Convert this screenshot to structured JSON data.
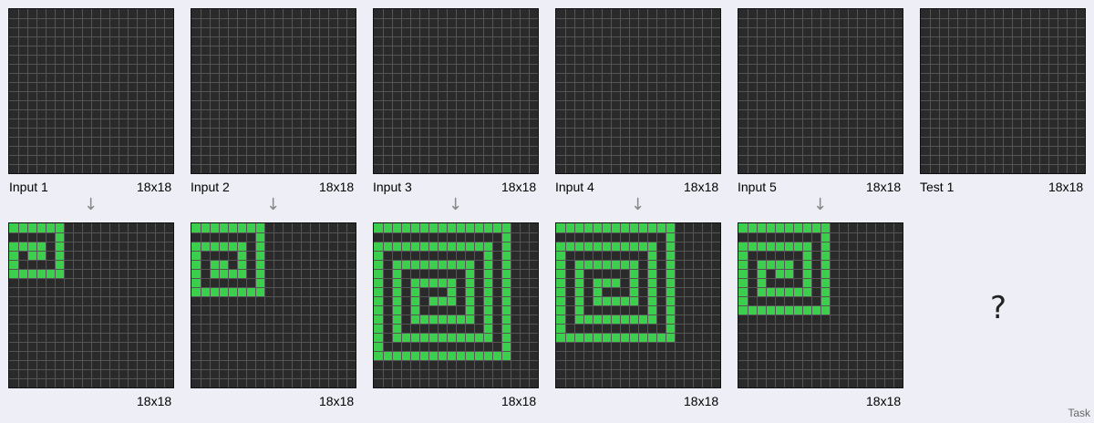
{
  "colors": {
    "background": "#eeeef6",
    "cell_empty": "#2a2a2a",
    "cell_fill": "#3ccf4e",
    "grid_line": "#555555",
    "arrow": "#888888"
  },
  "pairs": [
    {
      "input_label": "Input 1",
      "input_size": "18x18",
      "output_size": "18x18",
      "spiral_size": 6
    },
    {
      "input_label": "Input 2",
      "input_size": "18x18",
      "output_size": "18x18",
      "spiral_size": 8
    },
    {
      "input_label": "Input 3",
      "input_size": "18x18",
      "output_size": "18x18",
      "spiral_size": 15
    },
    {
      "input_label": "Input 4",
      "input_size": "18x18",
      "output_size": "18x18",
      "spiral_size": 13
    },
    {
      "input_label": "Input 5",
      "input_size": "18x18",
      "output_size": "18x18",
      "spiral_size": 10
    }
  ],
  "test": {
    "label": "Test 1",
    "size": "18x18",
    "output_placeholder": "?"
  },
  "arrow_glyph": "↓",
  "task_label": "Task"
}
